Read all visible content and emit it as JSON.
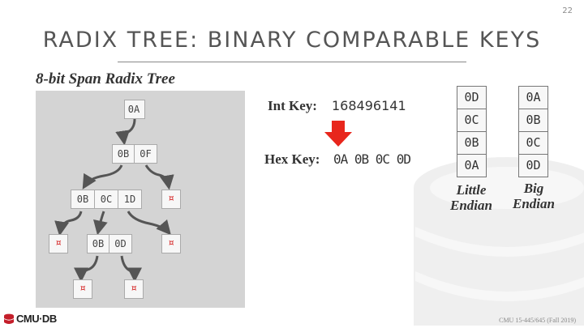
{
  "slide": {
    "number": "22",
    "title": "RADIX TREE: BINARY COMPARABLE KEYS",
    "subtitle": "8-bit Span Radix Tree",
    "footer": "CMU 15-445/645 (Fall 2019)",
    "logo_text": "CMU·DB"
  },
  "tree": {
    "root": [
      "0A"
    ],
    "level1": [
      "0B",
      "0F"
    ],
    "level2": [
      "0B",
      "0C",
      "1D"
    ],
    "level3_inner": [
      "0B",
      "0D"
    ],
    "null_symbol": "¤"
  },
  "conversion": {
    "int_label": "Int Key:",
    "int_value": "168496141",
    "hex_label": "Hex Key:",
    "hex_value": "0A 0B 0C 0D",
    "arrow_color": "#e8261c"
  },
  "endian": {
    "little": {
      "bytes": [
        "0D",
        "0C",
        "0B",
        "0A"
      ],
      "label_line1": "Little",
      "label_line2": "Endian"
    },
    "big": {
      "bytes": [
        "0A",
        "0B",
        "0C",
        "0D"
      ],
      "label_line1": "Big",
      "label_line2": "Endian"
    }
  },
  "colors": {
    "null_marker": "#d42020",
    "panel": "#d4d4d4"
  }
}
